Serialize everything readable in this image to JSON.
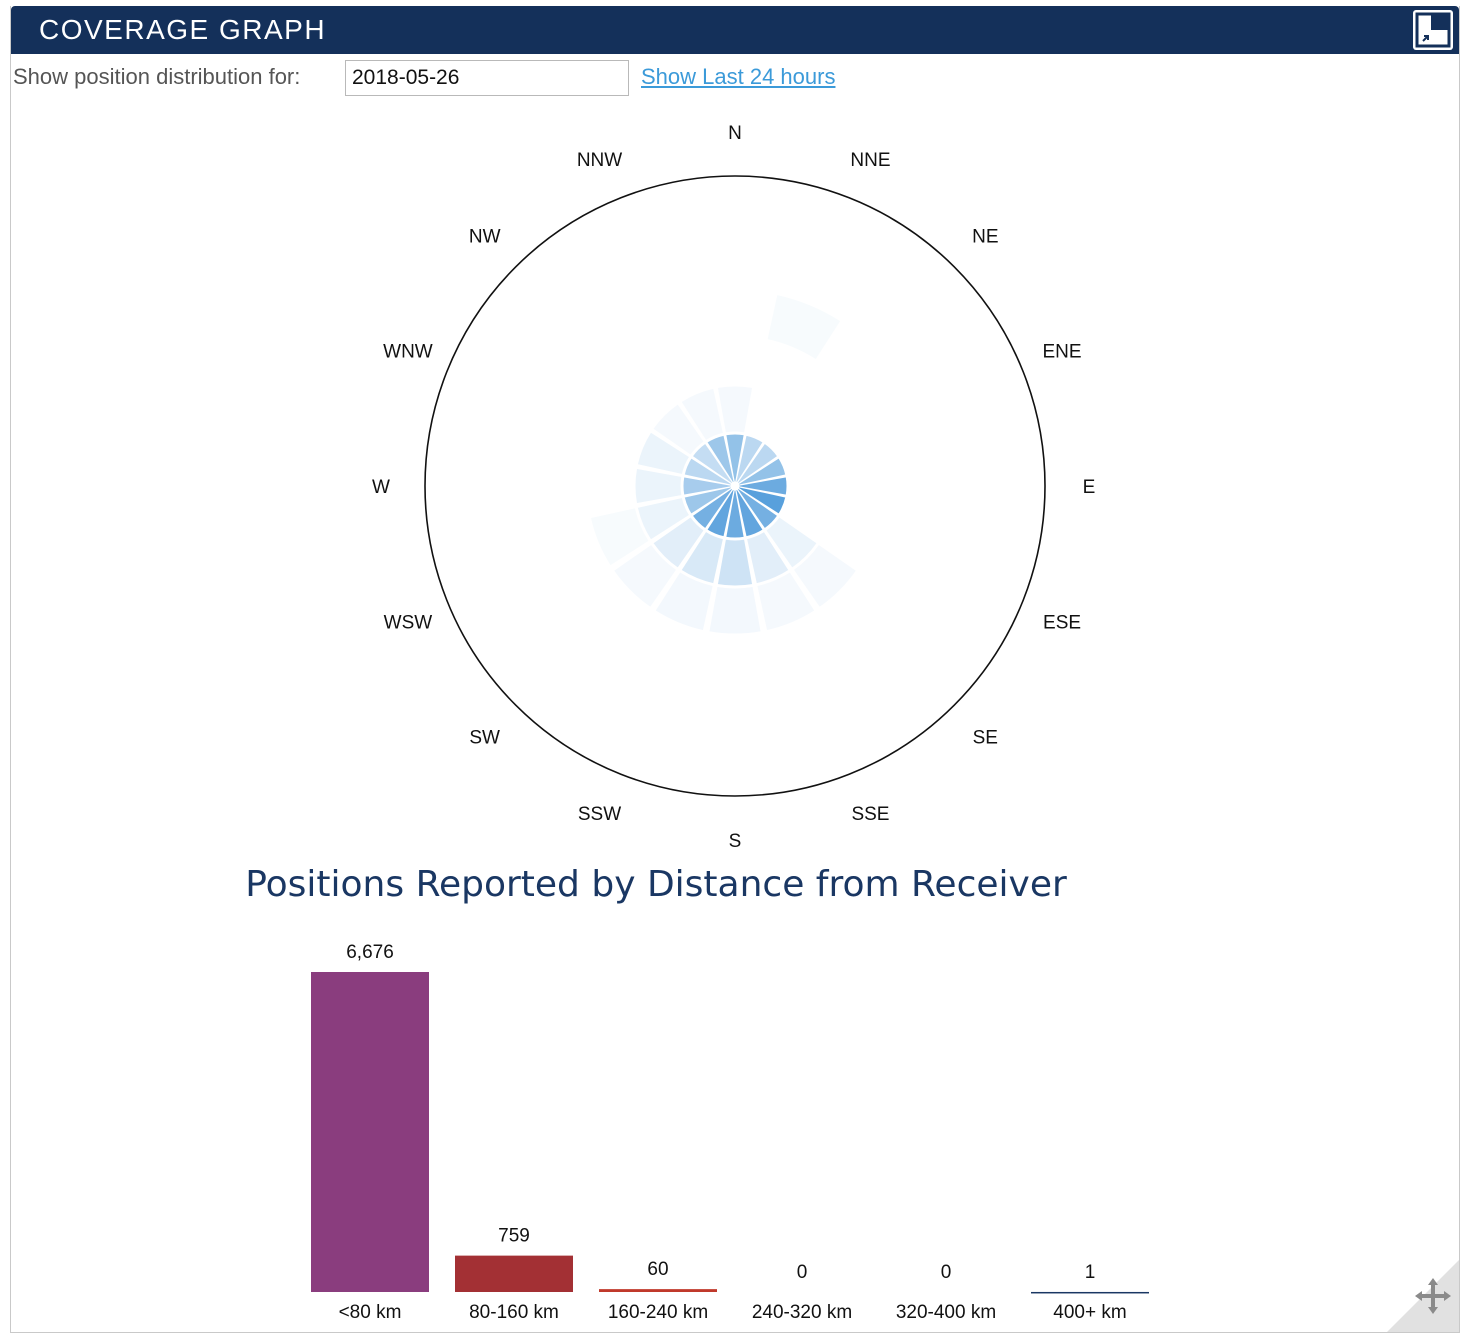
{
  "panel": {
    "title": "COVERAGE GRAPH",
    "expand_icon": "expand-icon",
    "resize_icon": "move-arrows-icon"
  },
  "controls": {
    "label": "Show position distribution for:",
    "date_value": "2018-05-26",
    "last24_link": "Show Last 24 hours"
  },
  "polar": {
    "directions": [
      "N",
      "NNE",
      "NE",
      "ENE",
      "E",
      "ESE",
      "SE",
      "SSE",
      "S",
      "SSW",
      "SW",
      "WSW",
      "W",
      "WNW",
      "NW",
      "NNW"
    ],
    "color": "#3b8fd6"
  },
  "bars": {
    "colors": [
      "#8a3d7e",
      "#a33034",
      "#c0392b",
      "#1a3763",
      "#1a3763",
      "#1a3763"
    ]
  },
  "chart_data": [
    {
      "type": "polar-bar",
      "title": "",
      "categories": [
        "N",
        "NNE",
        "NE",
        "ENE",
        "E",
        "ESE",
        "SE",
        "SSE",
        "S",
        "SSW",
        "SW",
        "WSW",
        "W",
        "WNW",
        "NW",
        "NNW"
      ],
      "rings": [
        "<80 km",
        "80-160 km",
        "160-240 km",
        "240-320 km",
        "320-400 km",
        "400+ km"
      ],
      "series": [
        {
          "values": [
            0.55,
            0.35,
            0.35,
            0.55,
            0.75,
            0.85,
            0.7,
            0.8,
            0.75,
            0.8,
            0.7,
            0.5,
            0.45,
            0.35,
            0.3,
            0.5
          ]
        },
        {
          "values": [
            0.05,
            0,
            0,
            0,
            0,
            0,
            0.1,
            0.15,
            0.25,
            0.2,
            0.15,
            0.1,
            0.1,
            0.1,
            0.05,
            0.05
          ]
        },
        {
          "values": [
            0,
            0,
            0,
            0,
            0,
            0,
            0.05,
            0.05,
            0.06,
            0.06,
            0.05,
            0.04,
            0,
            0,
            0,
            0
          ]
        },
        {
          "values": [
            0,
            0.04,
            0,
            0,
            0,
            0,
            0,
            0,
            0,
            0,
            0,
            0,
            0,
            0,
            0,
            0
          ]
        },
        {
          "values": [
            0,
            0,
            0,
            0,
            0,
            0,
            0,
            0,
            0,
            0,
            0,
            0,
            0,
            0,
            0,
            0
          ]
        },
        {
          "values": [
            0,
            0,
            0,
            0,
            0,
            0,
            0,
            0,
            0,
            0,
            0,
            0,
            0,
            0,
            0,
            0
          ]
        }
      ]
    },
    {
      "type": "bar",
      "title": "Positions Reported by Distance from Receiver",
      "categories": [
        "<80 km",
        "80-160 km",
        "160-240 km",
        "240-320 km",
        "320-400 km",
        "400+ km"
      ],
      "values": [
        6676,
        759,
        60,
        0,
        0,
        1
      ],
      "value_labels": [
        "6,676",
        "759",
        "60",
        "0",
        "0",
        "1"
      ]
    }
  ]
}
